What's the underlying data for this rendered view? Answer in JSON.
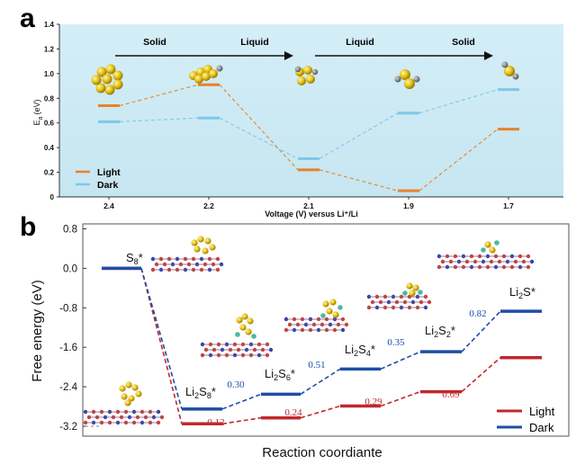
{
  "chart_data": [
    {
      "panel_label": "a",
      "type": "line",
      "xlabel": "Voltage (V) versus Li⁺/Li",
      "ylabel": "E",
      "ylabel_sub": "a",
      "ylabel_unit": "(eV)",
      "ylim": [
        0,
        1.4
      ],
      "yticks": [
        "0",
        "0.2",
        "0.4",
        "0.6",
        "0.8",
        "1.0",
        "1.2",
        "1.4"
      ],
      "categories": [
        "2.4",
        "2.2",
        "2.1",
        "1.9",
        "1.7"
      ],
      "phase_labels": [
        "Solid",
        "Liquid",
        "Liquid",
        "Solid"
      ],
      "series": [
        {
          "name": "Light",
          "color": "#e8822a",
          "values": [
            0.74,
            0.91,
            0.22,
            0.05,
            0.55
          ]
        },
        {
          "name": "Dark",
          "color": "#7ec8e8",
          "values": [
            0.61,
            0.64,
            0.31,
            0.68,
            0.87
          ]
        }
      ],
      "background": "#cdeaf4",
      "legend": "bottom-left",
      "icon_names": [
        "s8-cluster-icon",
        "s6-cluster-icon",
        "s4-cluster-icon",
        "s2-cluster-icon",
        "s1-cluster-icon"
      ]
    },
    {
      "panel_label": "b",
      "type": "line",
      "xlabel": "Reaction coordiante",
      "ylabel": "Free energy (eV)",
      "ylim": [
        -3.4,
        0.9
      ],
      "yticks": [
        "0.8",
        "0.0",
        "-0.8",
        "-1.6",
        "-2.4",
        "-3.2"
      ],
      "species": [
        {
          "pre": "S",
          "sub": "8",
          "mid": "",
          "sub2": "",
          "post": "*"
        },
        {
          "pre": "Li",
          "sub": "2",
          "mid": "S",
          "sub2": "8",
          "post": "*"
        },
        {
          "pre": "Li",
          "sub": "2",
          "mid": "S",
          "sub2": "6",
          "post": "*"
        },
        {
          "pre": "Li",
          "sub": "2",
          "mid": "S",
          "sub2": "4",
          "post": "*"
        },
        {
          "pre": "Li",
          "sub": "2",
          "mid": "S",
          "sub2": "2",
          "post": "*"
        },
        {
          "pre": "Li",
          "sub": "2",
          "mid": "S",
          "sub2": "",
          "post": "*"
        }
      ],
      "series": [
        {
          "name": "Light",
          "color": "#c0282d",
          "values": [
            0.0,
            -3.15,
            -3.03,
            -2.79,
            -2.5,
            -1.81
          ]
        },
        {
          "name": "Dark",
          "color": "#1d4ea6",
          "values": [
            0.0,
            -2.85,
            -2.55,
            -2.04,
            -1.69,
            -0.87
          ]
        }
      ],
      "step_labels": {
        "Light": [
          "0.12",
          "0.24",
          "0.29",
          "0.69"
        ],
        "Dark": [
          "0.30",
          "0.51",
          "0.35",
          "0.82"
        ]
      },
      "legend": "bottom-right",
      "start_level": -3.2
    }
  ]
}
